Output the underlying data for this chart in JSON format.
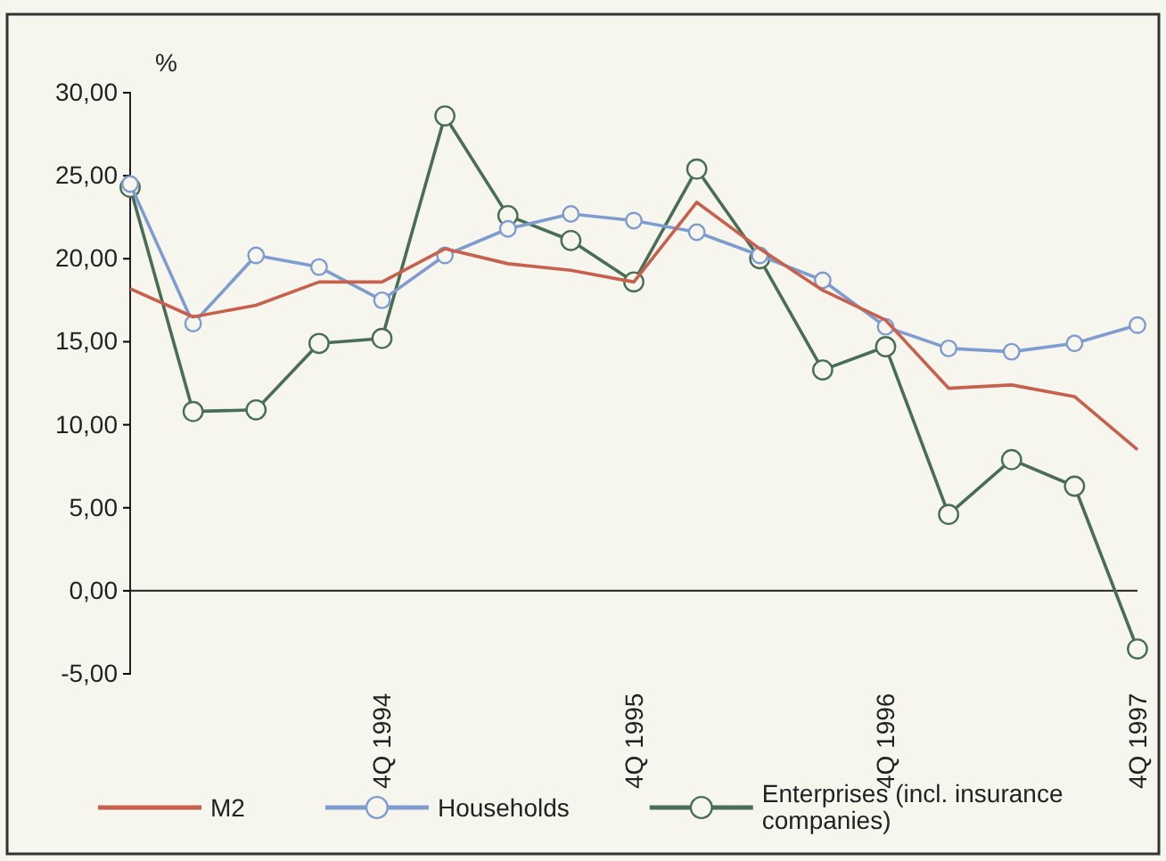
{
  "chart_data": {
    "type": "line",
    "ylabel": "%",
    "categories": [
      null,
      null,
      null,
      null,
      "4Q 1994",
      null,
      null,
      null,
      "4Q 1995",
      null,
      null,
      null,
      "4Q 1996",
      null,
      null,
      null,
      "4Q 1997"
    ],
    "series": [
      {
        "name": "M2",
        "color": "#c8604e",
        "marker": "none",
        "values": [
          18.2,
          16.5,
          17.2,
          18.6,
          18.6,
          20.6,
          19.7,
          19.3,
          18.6,
          23.4,
          20.6,
          18.1,
          16.3,
          12.2,
          12.4,
          11.7,
          8.5
        ]
      },
      {
        "name": "Households",
        "color": "#7f9ccf",
        "marker": "circle",
        "values": [
          24.5,
          16.1,
          20.2,
          19.5,
          17.5,
          20.2,
          21.8,
          22.7,
          22.3,
          21.6,
          20.2,
          18.7,
          15.9,
          14.6,
          14.4,
          14.9,
          16.0
        ]
      },
      {
        "name": "Enterprises (incl. insurance companies)",
        "color": "#4a6e55",
        "marker": "circle",
        "values": [
          24.3,
          10.8,
          10.9,
          14.9,
          15.2,
          28.6,
          22.6,
          21.1,
          18.6,
          25.4,
          20.0,
          13.3,
          14.7,
          4.6,
          7.9,
          6.3,
          -3.5
        ]
      }
    ],
    "ylim": [
      -5,
      30
    ],
    "yticks": [
      {
        "value": -5,
        "label": "-5,00"
      },
      {
        "value": 0,
        "label": "0,00"
      },
      {
        "value": 5,
        "label": "5,00"
      },
      {
        "value": 10,
        "label": "10,00"
      },
      {
        "value": 15,
        "label": "15,00"
      },
      {
        "value": 20,
        "label": "20,00"
      },
      {
        "value": 25,
        "label": "25,00"
      },
      {
        "value": 30,
        "label": "30,00"
      }
    ],
    "ref_lines": [
      {
        "axis": "y",
        "value": 0,
        "color": "#222222"
      }
    ],
    "grid": false,
    "legend": "bottom"
  }
}
